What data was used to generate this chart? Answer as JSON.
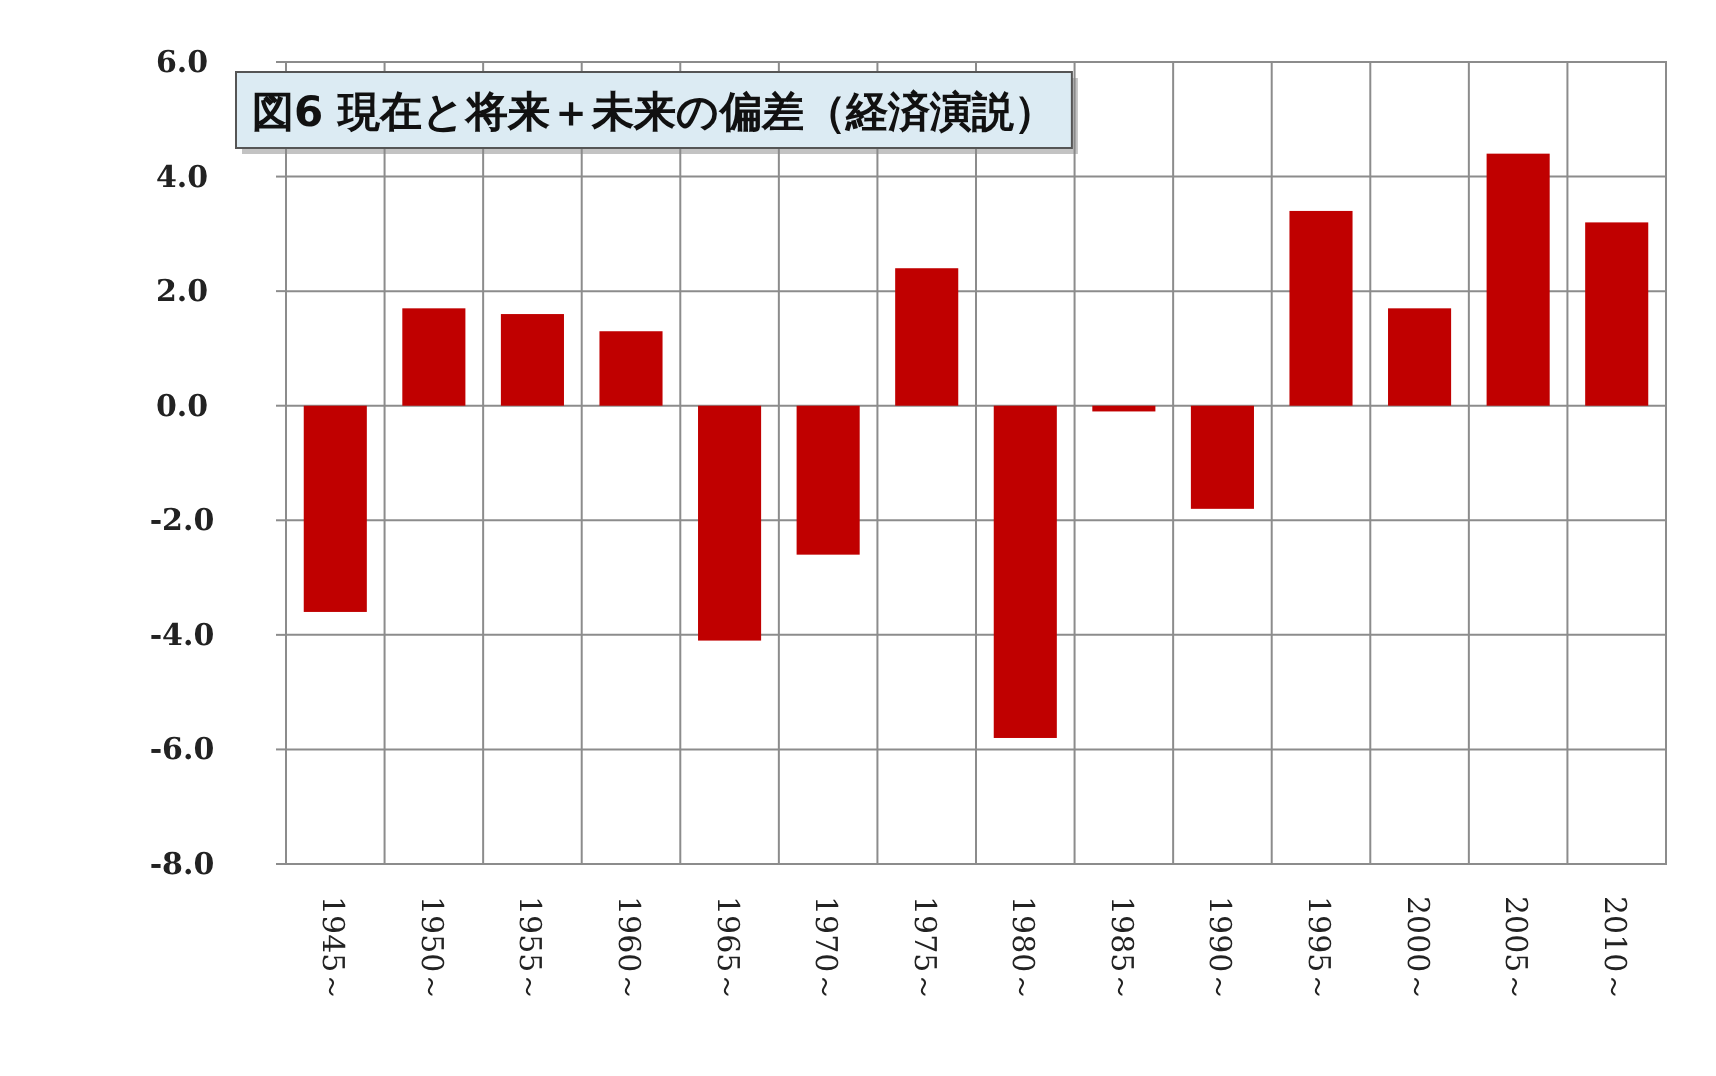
{
  "chart_data": {
    "type": "bar",
    "title": "図6  現在と将来＋未来の偏差（経済演説）",
    "categories": [
      "1945～",
      "1950～",
      "1955～",
      "1960～",
      "1965～",
      "1970～",
      "1975～",
      "1980～",
      "1985～",
      "1990～",
      "1995～",
      "2000～",
      "2005～",
      "2010～"
    ],
    "values": [
      -3.6,
      1.7,
      1.6,
      1.3,
      -4.1,
      -2.6,
      2.4,
      -5.8,
      -0.1,
      -1.8,
      3.4,
      1.7,
      4.4,
      3.2
    ],
    "color": "#c00000",
    "ylim": [
      -8,
      6
    ],
    "yticks": [
      {
        "value": -8,
        "label": "-8.0"
      },
      {
        "value": -6,
        "label": "-6.0"
      },
      {
        "value": -4,
        "label": "-4.0"
      },
      {
        "value": -2,
        "label": "-2.0"
      },
      {
        "value": 0,
        "label": "0.0"
      },
      {
        "value": 2,
        "label": "2.0"
      },
      {
        "value": 4,
        "label": "4.0"
      },
      {
        "value": 6,
        "label": "6.0"
      }
    ],
    "grid": true
  }
}
